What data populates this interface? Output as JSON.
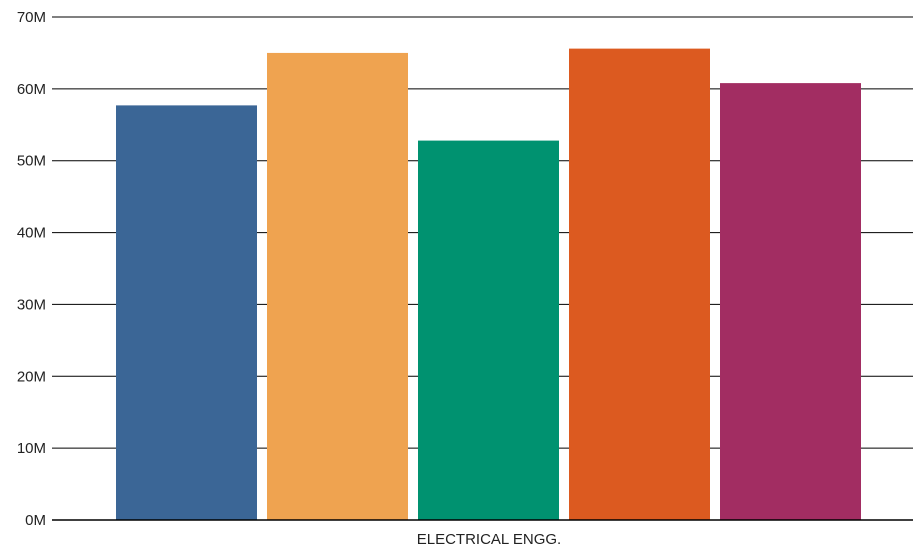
{
  "chart_data": {
    "type": "bar",
    "categories": [
      "ELECTRICAL ENGG."
    ],
    "series": [
      {
        "values": [
          57.7
        ],
        "color": "#3b6696"
      },
      {
        "values": [
          65.0
        ],
        "color": "#efa350"
      },
      {
        "values": [
          52.8
        ],
        "color": "#009270"
      },
      {
        "values": [
          65.6
        ],
        "color": "#dc5a20"
      },
      {
        "values": [
          60.8
        ],
        "color": "#a22d62"
      }
    ],
    "value_unit": "M",
    "ylim": [
      0,
      70
    ],
    "y_ticks": [
      "0M",
      "10M",
      "20M",
      "30M",
      "40M",
      "50M",
      "60M",
      "70M"
    ],
    "grid": true,
    "legend": "none",
    "title": "",
    "xlabel": "",
    "ylabel": ""
  }
}
